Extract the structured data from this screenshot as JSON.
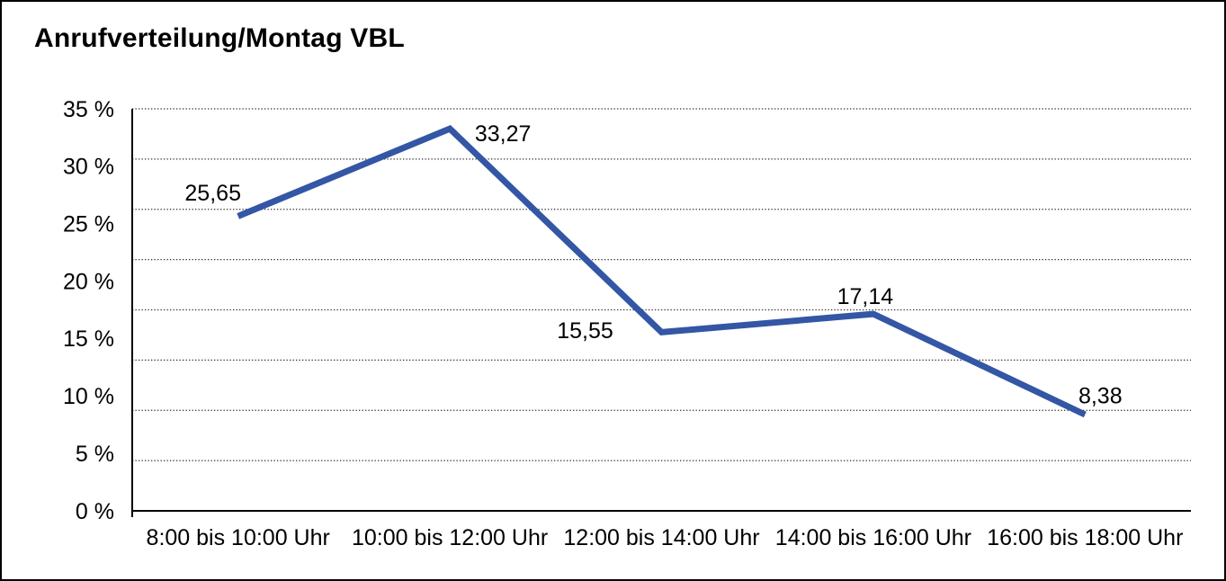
{
  "colors": {
    "line": "#3356A5",
    "axis": "#000000",
    "grid": "#2B2B2B",
    "background": "#FFFFFF",
    "frame_border": "#000000",
    "text": "#000000"
  },
  "chart_data": {
    "type": "line",
    "title": "Anrufverteilung/Montag VBL",
    "categories": [
      "8:00 bis 10:00 Uhr",
      "10:00 bis 12:00 Uhr",
      "12:00 bis 14:00 Uhr",
      "14:00 bis 16:00 Uhr",
      "16:00 bis 18:00 Uhr"
    ],
    "values": [
      25.65,
      33.27,
      15.55,
      17.14,
      8.38
    ],
    "point_labels": [
      "25,65",
      "33,27",
      "15,55",
      "17,14",
      "8,38"
    ],
    "y_tick_labels": [
      "35 %",
      "30 %",
      "25 %",
      "20 %",
      "15 %",
      "10 %",
      "5 %",
      "0 %"
    ],
    "ylim": [
      0,
      35
    ],
    "xlabel": "",
    "ylabel": "",
    "gridline_count": 9,
    "grid": "dotted-horizontal",
    "legend": "none"
  }
}
